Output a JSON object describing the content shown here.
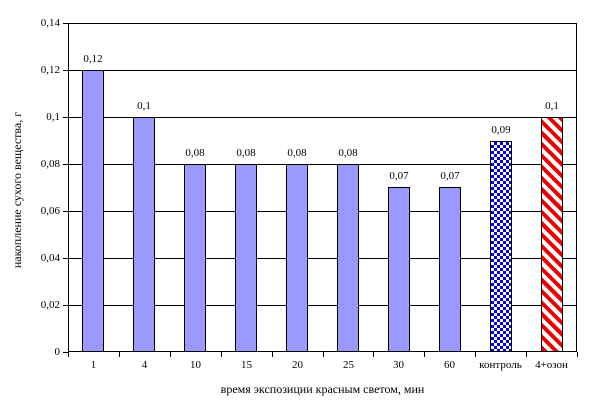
{
  "chart_data": {
    "type": "bar",
    "title": "",
    "categories": [
      "1",
      "4",
      "10",
      "15",
      "20",
      "25",
      "30",
      "60",
      "контроль",
      "4+озон"
    ],
    "values": [
      0.12,
      0.1,
      0.08,
      0.08,
      0.08,
      0.08,
      0.07,
      0.07,
      0.09,
      0.1
    ],
    "value_labels": [
      "0,12",
      "0,1",
      "0,08",
      "0,08",
      "0,08",
      "0,08",
      "0,07",
      "0,07",
      "0,09",
      "0,1"
    ],
    "bar_styles": [
      "solid",
      "solid",
      "solid",
      "solid",
      "solid",
      "solid",
      "solid",
      "solid",
      "checker",
      "diagonal"
    ],
    "xlabel": "время экспозиции красным светом, мин",
    "ylabel": "накопление сухого вещества, г",
    "ylim": [
      0,
      0.14
    ],
    "ytick_step": 0.02,
    "ytick_labels": [
      "0",
      "0,02",
      "0,04",
      "0,06",
      "0,08",
      "0,1",
      "0,12",
      "0,14"
    ],
    "grid": true,
    "legend": "none",
    "colors": {
      "bar_solid": "#9999FF",
      "bar_checker": "#0000E6",
      "bar_stripe": "#EE0000",
      "axis": "#000000",
      "background": "#FFFFFF"
    }
  }
}
